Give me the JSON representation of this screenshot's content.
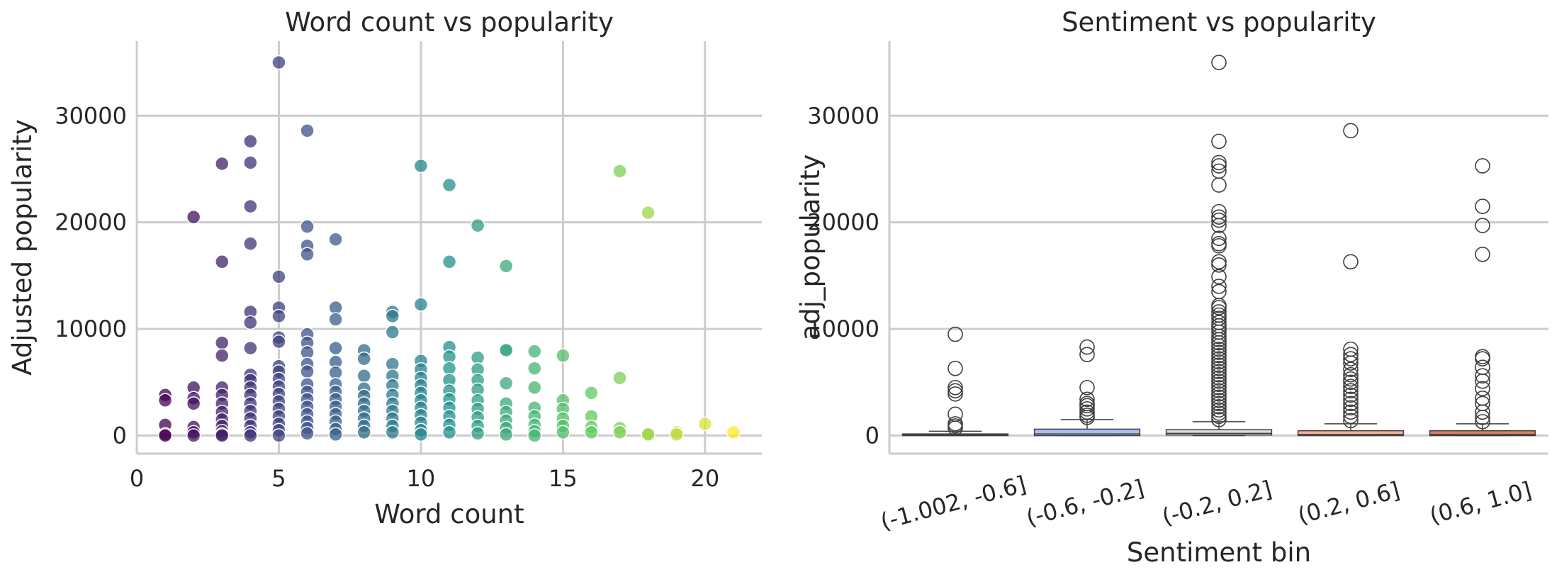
{
  "chart_data": [
    {
      "type": "scatter",
      "title": "Word count vs popularity",
      "xlabel": "Word count",
      "ylabel": "Adjusted popularity",
      "xlim": [
        0,
        22
      ],
      "ylim": [
        -1700,
        37000
      ],
      "xticks": [
        0,
        5,
        10,
        15,
        20
      ],
      "yticks": [
        0,
        10000,
        20000,
        30000
      ],
      "grid": true,
      "colormap": [
        "#440154",
        "#3b528b",
        "#21918c",
        "#5ec962",
        "#fde725"
      ],
      "points": [
        [
          1,
          3800
        ],
        [
          1,
          3300
        ],
        [
          1,
          1000
        ],
        [
          1,
          100
        ],
        [
          1,
          0
        ],
        [
          2,
          20500
        ],
        [
          2,
          4500
        ],
        [
          2,
          3500
        ],
        [
          2,
          3000
        ],
        [
          2,
          800
        ],
        [
          2,
          300
        ],
        [
          2,
          0
        ],
        [
          3,
          25500
        ],
        [
          3,
          16300
        ],
        [
          3,
          8700
        ],
        [
          3,
          7500
        ],
        [
          3,
          4500
        ],
        [
          3,
          3800
        ],
        [
          3,
          3000
        ],
        [
          3,
          2200
        ],
        [
          3,
          1500
        ],
        [
          3,
          900
        ],
        [
          3,
          400
        ],
        [
          3,
          100
        ],
        [
          3,
          0
        ],
        [
          4,
          27600
        ],
        [
          4,
          25600
        ],
        [
          4,
          21500
        ],
        [
          4,
          18000
        ],
        [
          4,
          11600
        ],
        [
          4,
          10600
        ],
        [
          4,
          8200
        ],
        [
          4,
          5700
        ],
        [
          4,
          5200
        ],
        [
          4,
          4500
        ],
        [
          4,
          3800
        ],
        [
          4,
          3000
        ],
        [
          4,
          2300
        ],
        [
          4,
          1600
        ],
        [
          4,
          900
        ],
        [
          4,
          300
        ],
        [
          4,
          0
        ],
        [
          5,
          35000
        ],
        [
          5,
          14900
        ],
        [
          5,
          12000
        ],
        [
          5,
          11200
        ],
        [
          5,
          9200
        ],
        [
          5,
          8800
        ],
        [
          5,
          6500
        ],
        [
          5,
          6000
        ],
        [
          5,
          5300
        ],
        [
          5,
          4600
        ],
        [
          5,
          3900
        ],
        [
          5,
          3200
        ],
        [
          5,
          2500
        ],
        [
          5,
          1800
        ],
        [
          5,
          1100
        ],
        [
          5,
          500
        ],
        [
          5,
          0
        ],
        [
          6,
          28600
        ],
        [
          6,
          19600
        ],
        [
          6,
          17800
        ],
        [
          6,
          17000
        ],
        [
          6,
          9500
        ],
        [
          6,
          8700
        ],
        [
          6,
          7800
        ],
        [
          6,
          6700
        ],
        [
          6,
          6000
        ],
        [
          6,
          4800
        ],
        [
          6,
          4100
        ],
        [
          6,
          3400
        ],
        [
          6,
          2700
        ],
        [
          6,
          2000
        ],
        [
          6,
          1300
        ],
        [
          6,
          700
        ],
        [
          6,
          200
        ],
        [
          7,
          18400
        ],
        [
          7,
          12000
        ],
        [
          7,
          10900
        ],
        [
          7,
          8200
        ],
        [
          7,
          6900
        ],
        [
          7,
          5900
        ],
        [
          7,
          4800
        ],
        [
          7,
          4100
        ],
        [
          7,
          3400
        ],
        [
          7,
          2700
        ],
        [
          7,
          2000
        ],
        [
          7,
          1300
        ],
        [
          7,
          600
        ],
        [
          7,
          100
        ],
        [
          8,
          8000
        ],
        [
          8,
          7200
        ],
        [
          8,
          5600
        ],
        [
          8,
          4400
        ],
        [
          8,
          3700
        ],
        [
          8,
          3000
        ],
        [
          8,
          2300
        ],
        [
          8,
          1600
        ],
        [
          8,
          900
        ],
        [
          8,
          300
        ],
        [
          9,
          11600
        ],
        [
          9,
          11200
        ],
        [
          9,
          9700
        ],
        [
          9,
          6700
        ],
        [
          9,
          5600
        ],
        [
          9,
          4700
        ],
        [
          9,
          3800
        ],
        [
          9,
          3000
        ],
        [
          9,
          2300
        ],
        [
          9,
          1600
        ],
        [
          9,
          900
        ],
        [
          9,
          300
        ],
        [
          10,
          25300
        ],
        [
          10,
          12300
        ],
        [
          10,
          7000
        ],
        [
          10,
          6200
        ],
        [
          10,
          5400
        ],
        [
          10,
          4700
        ],
        [
          10,
          4000
        ],
        [
          10,
          3300
        ],
        [
          10,
          2600
        ],
        [
          10,
          1900
        ],
        [
          10,
          1200
        ],
        [
          10,
          500
        ],
        [
          10,
          100
        ],
        [
          11,
          23500
        ],
        [
          11,
          16300
        ],
        [
          11,
          8300
        ],
        [
          11,
          7400
        ],
        [
          11,
          6300
        ],
        [
          11,
          5200
        ],
        [
          11,
          4200
        ],
        [
          11,
          3400
        ],
        [
          11,
          2600
        ],
        [
          11,
          1800
        ],
        [
          11,
          1000
        ],
        [
          11,
          300
        ],
        [
          12,
          19700
        ],
        [
          12,
          7300
        ],
        [
          12,
          6200
        ],
        [
          12,
          5200
        ],
        [
          12,
          4300
        ],
        [
          12,
          3300
        ],
        [
          12,
          2500
        ],
        [
          12,
          1700
        ],
        [
          12,
          900
        ],
        [
          12,
          200
        ],
        [
          13,
          15900
        ],
        [
          13,
          8100
        ],
        [
          13,
          8000
        ],
        [
          13,
          4900
        ],
        [
          13,
          3000
        ],
        [
          13,
          2200
        ],
        [
          13,
          1400
        ],
        [
          13,
          700
        ],
        [
          13,
          100
        ],
        [
          14,
          7900
        ],
        [
          14,
          6300
        ],
        [
          14,
          4500
        ],
        [
          14,
          2600
        ],
        [
          14,
          1800
        ],
        [
          14,
          1000
        ],
        [
          14,
          400
        ],
        [
          14,
          0
        ],
        [
          15,
          7500
        ],
        [
          15,
          3300
        ],
        [
          15,
          2500
        ],
        [
          15,
          1600
        ],
        [
          15,
          900
        ],
        [
          15,
          300
        ],
        [
          16,
          4000
        ],
        [
          16,
          1800
        ],
        [
          16,
          800
        ],
        [
          16,
          300
        ],
        [
          17,
          24800
        ],
        [
          17,
          5400
        ],
        [
          17,
          700
        ],
        [
          17,
          300
        ],
        [
          18,
          20900
        ],
        [
          18,
          200
        ],
        [
          18,
          100
        ],
        [
          19,
          300
        ],
        [
          19,
          100
        ],
        [
          20,
          1100
        ],
        [
          21,
          300
        ]
      ]
    },
    {
      "type": "box",
      "title": "Sentiment vs popularity",
      "xlabel": "Sentiment bin",
      "ylabel": "adj_popularity",
      "ylim": [
        -1700,
        37000
      ],
      "yticks": [
        0,
        10000,
        20000,
        30000
      ],
      "grid": true,
      "categories": [
        "(-1.002, -0.6]",
        "(-0.6, -0.2]",
        "(-0.2, 0.2]",
        "(0.2, 0.6]",
        "(0.6, 1.0]"
      ],
      "colors": [
        "#5f7bbd",
        "#a9c1f0",
        "#dddddd",
        "#f4b197",
        "#e17d63"
      ],
      "boxes": [
        {
          "whislo": 0,
          "q1": 0,
          "median": 50,
          "q3": 150,
          "whishi": 400,
          "fliers": [
            9500,
            6300,
            4500,
            4200,
            3900,
            2000,
            1100,
            900,
            700
          ]
        },
        {
          "whislo": 0,
          "q1": 0,
          "median": 150,
          "q3": 600,
          "whishi": 1500,
          "fliers": [
            8300,
            7600,
            4500,
            3400,
            3000,
            2800,
            2500,
            2200,
            1900,
            1700
          ]
        },
        {
          "whislo": 0,
          "q1": 50,
          "median": 200,
          "q3": 550,
          "whishi": 1300,
          "fliers": [
            35000,
            27600,
            25600,
            25300,
            24800,
            23500,
            21000,
            20500,
            20200,
            19700,
            18500,
            18000,
            17800,
            16300,
            16000,
            14900,
            14000,
            13500,
            12200,
            12000,
            11600,
            11300,
            11000,
            10600,
            10300,
            10000,
            9700,
            9300,
            9000,
            8700,
            8400,
            8100,
            7800,
            7500,
            7200,
            6900,
            6600,
            6300,
            6000,
            5700,
            5400,
            5100,
            4800,
            4500,
            4200,
            3900,
            3600,
            3300,
            3000,
            2700,
            2400,
            2100,
            1800,
            1500
          ]
        },
        {
          "whislo": 0,
          "q1": 0,
          "median": 100,
          "q3": 450,
          "whishi": 1100,
          "fliers": [
            28600,
            16300,
            8100,
            7600,
            7200,
            6800,
            6200,
            5700,
            5300,
            5000,
            4600,
            4200,
            3800,
            3400,
            3000,
            2600,
            2200,
            1800,
            1400
          ]
        },
        {
          "whislo": 0,
          "q1": 0,
          "median": 100,
          "q3": 450,
          "whishi": 1100,
          "fliers": [
            25300,
            21500,
            19700,
            17000,
            7400,
            7200,
            6400,
            5600,
            5100,
            4400,
            3500,
            3000,
            2200,
            1700,
            1300
          ]
        }
      ]
    }
  ]
}
